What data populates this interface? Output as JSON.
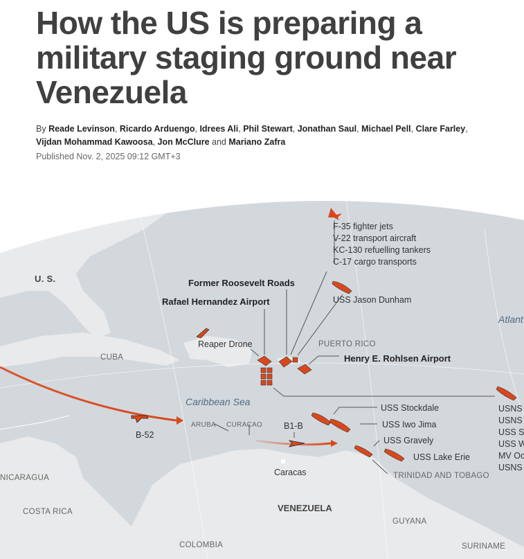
{
  "article": {
    "headline": "How the US is preparing a military staging ground near Venezuela",
    "byline_prefix": "By",
    "authors": [
      "Reade Levinson",
      "Ricardo Arduengo",
      "Idrees Ali",
      "Phil Stewart",
      "Jonathan Saul",
      "Michael Pell",
      "Clare Farley",
      "Vijdan Mohammad Kawoosa",
      "Jon McClure",
      "Mariano Zafra"
    ],
    "byline_and": "and",
    "published": "Published Nov. 2, 2025  09:12 GMT+3"
  },
  "map": {
    "colors": {
      "ocean": "#d3d8dd",
      "land": "#e9eaeb",
      "accent": "#d9481c",
      "background": "#ffffff"
    },
    "regions": {
      "us": "U. S.",
      "cuba": "CUBA",
      "puerto_rico": "PUERTO RICO",
      "aruba": "ARUBA",
      "curacao": "CURAÇAO",
      "nicaragua": "NICARAGUA",
      "costa_rica": "COSTA RICA",
      "venezuela": "VENEZUELA",
      "colombia": "COLOMBIA",
      "guyana": "GUYANA",
      "suriname": "SURINAME",
      "trinidad": "TRINIDAD AND TOBAGO",
      "caracas": "Caracas"
    },
    "seas": {
      "caribbean": "Caribbean Sea",
      "atlantic": "Atlant"
    },
    "aircraft_list": [
      "F-35 fighter jets",
      "V-22 transport aircraft",
      "KC-130 refuelling tankers",
      "C-17 cargo transports"
    ],
    "sites": {
      "roosevelt": "Former Roosevelt Roads",
      "rafael": "Rafael Hernandez Airport",
      "rohlsen": "Henry E. Rohlsen Airport",
      "reaper": "Reaper Drone",
      "b52": "B-52",
      "b1b": "B1-B"
    },
    "ships": {
      "jason_dunham": "USS Jason Dunham",
      "stockdale": "USS Stockdale",
      "iwo_jima": "USS Iwo Jima",
      "gravely": "USS Gravely",
      "lake_erie": "USS Lake Erie",
      "group_right": [
        "USNS",
        "USNS",
        "USS S",
        "USS W",
        "MV Oc",
        "USNS"
      ]
    }
  }
}
